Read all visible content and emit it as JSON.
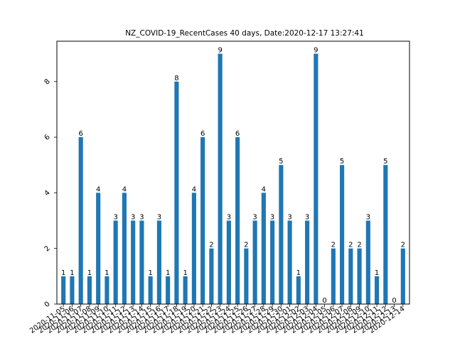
{
  "chart_data": {
    "type": "bar",
    "title": "NZ_COVID-19_RecentCases 40 days,  Date:2020-12-17 13:27:41",
    "xlabel": "",
    "ylabel": "",
    "categories": [
      "2020-11-05",
      "2020-11-06",
      "2020-11-07",
      "2020-11-08",
      "2020-11-09",
      "2020-11-10",
      "2020-11-11",
      "2020-11-12",
      "2020-11-13",
      "2020-11-14",
      "2020-11-15",
      "2020-11-16",
      "2020-11-17",
      "2020-11-18",
      "2020-11-19",
      "2020-11-20",
      "2020-11-21",
      "2020-11-22",
      "2020-11-23",
      "2020-11-24",
      "2020-11-25",
      "2020-11-26",
      "2020-11-27",
      "2020-11-28",
      "2020-11-29",
      "2020-11-30",
      "2020-12-01",
      "2020-12-02",
      "2020-12-03",
      "2020-12-04",
      "2020-12-05",
      "2020-12-06",
      "2020-12-07",
      "2020-12-08",
      "2020-12-09",
      "2020-12-10",
      "2020-12-11",
      "2020-12-12",
      "2020-12-13",
      "2020-12-14"
    ],
    "values": [
      1,
      1,
      6,
      1,
      4,
      1,
      3,
      4,
      3,
      3,
      1,
      3,
      1,
      8,
      1,
      4,
      6,
      2,
      9,
      3,
      6,
      2,
      3,
      4,
      3,
      5,
      3,
      1,
      3,
      9,
      0,
      2,
      5,
      2,
      2,
      3,
      1,
      5,
      0,
      2
    ],
    "ylim": [
      0,
      9.45
    ],
    "yticks": [
      0,
      2,
      4,
      6,
      8
    ],
    "bar_color": "#1f77b4",
    "grid": false,
    "legend": "none"
  }
}
